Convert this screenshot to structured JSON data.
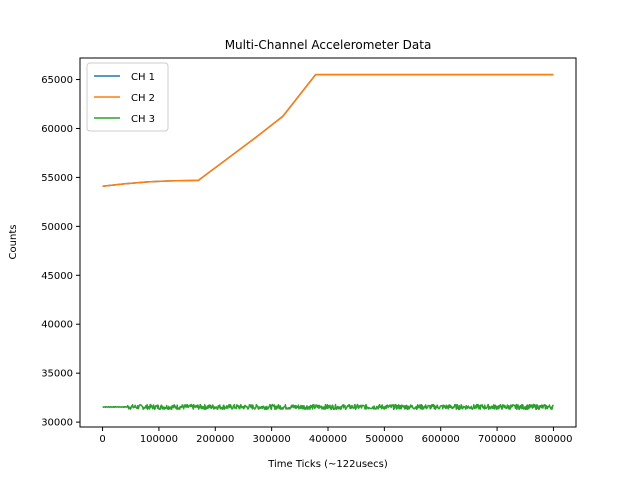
{
  "chart_data": {
    "type": "line",
    "title": "Multi-Channel Accelerometer Data",
    "xlabel": "Time Ticks (~122usecs)",
    "ylabel": "Counts",
    "xlim": [
      -40000,
      840000
    ],
    "ylim": [
      29500,
      67200
    ],
    "xticks": [
      0,
      100000,
      200000,
      300000,
      400000,
      500000,
      600000,
      700000,
      800000
    ],
    "xtick_labels": [
      "0",
      "100000",
      "200000",
      "300000",
      "400000",
      "500000",
      "600000",
      "700000",
      "800000"
    ],
    "yticks": [
      30000,
      35000,
      40000,
      45000,
      50000,
      55000,
      60000,
      65000
    ],
    "ytick_labels": [
      "30000",
      "35000",
      "40000",
      "45000",
      "50000",
      "55000",
      "60000",
      "65000"
    ],
    "grid": false,
    "legend_position": "top-left",
    "series": [
      {
        "name": "CH 1",
        "color": "#1f77b4",
        "x": [
          0,
          40000,
          80000,
          120000,
          170000,
          220000,
          270000,
          320000,
          378000,
          450000,
          550000,
          650000,
          750000,
          800000
        ],
        "y": [
          54100,
          54350,
          54550,
          54650,
          54700,
          56850,
          59000,
          61250,
          65500,
          65500,
          65500,
          65500,
          65500,
          65500
        ]
      },
      {
        "name": "CH 2",
        "color": "#ff7f0e",
        "x": [
          0,
          40000,
          80000,
          120000,
          170000,
          220000,
          270000,
          320000,
          378000,
          450000,
          550000,
          650000,
          750000,
          800000
        ],
        "y": [
          54100,
          54350,
          54550,
          54650,
          54700,
          56850,
          59000,
          61250,
          65500,
          65500,
          65500,
          65500,
          65500,
          65500
        ]
      },
      {
        "name": "CH 3",
        "color": "#2ca02c",
        "baseline": 31550,
        "noise_amplitude": 250,
        "x": [
          0,
          800000
        ],
        "y": [
          31550,
          31550
        ]
      }
    ]
  }
}
